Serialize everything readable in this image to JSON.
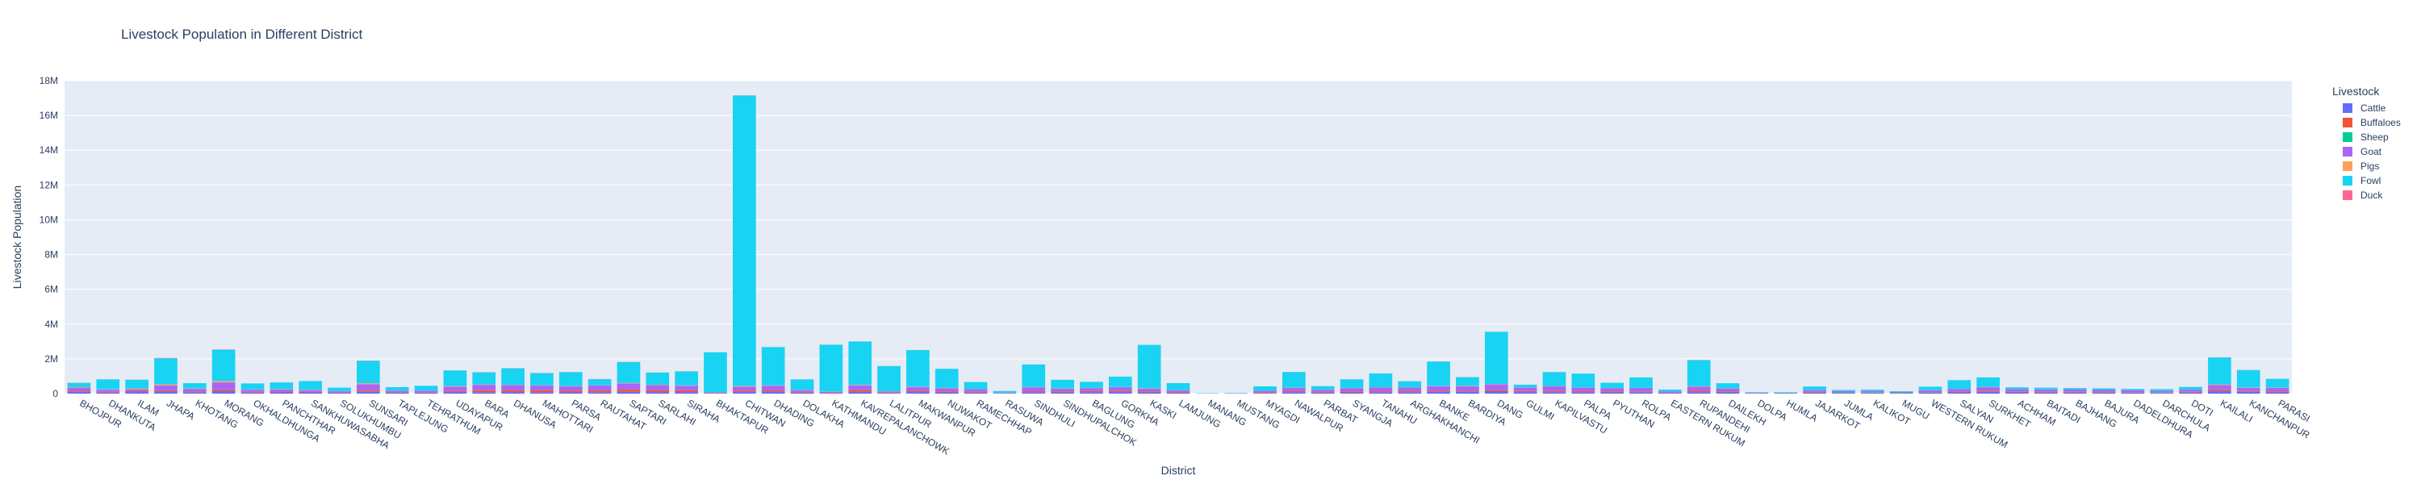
{
  "chart_data": {
    "type": "bar",
    "stacked": true,
    "title": "Livestock Population in Different District",
    "xlabel": "District",
    "ylabel": "Livestock Population",
    "ylim": [
      0,
      18000000
    ],
    "yticks": [
      "0",
      "2M",
      "4M",
      "6M",
      "8M",
      "10M",
      "12M",
      "14M",
      "16M",
      "18M"
    ],
    "ytick_values": [
      0,
      2000000,
      4000000,
      6000000,
      8000000,
      10000000,
      12000000,
      14000000,
      16000000,
      18000000
    ],
    "grid": true,
    "legend_title": "Livestock",
    "legend_position": "right",
    "categories": [
      "BHOJPUR",
      "DHANKUTA",
      "ILAM",
      "JHAPA",
      "KHOTANG",
      "MORANG",
      "OKHALDHUNGA",
      "PANCHTHAR",
      "SANKHUWASABHA",
      "SOLUKHUMBU",
      "SUNSARI",
      "TAPLEJUNG",
      "TEHRATHUM",
      "UDAYAPUR",
      "BARA",
      "DHANUSA",
      "MAHOTTARI",
      "PARSA",
      "RAUTAHAT",
      "SAPTARI",
      "SARLAHI",
      "SIRAHA",
      "BHAKTAPUR",
      "CHITWAN",
      "DHADING",
      "DOLAKHA",
      "KATHMANDU",
      "KAVREPALANCHOWK",
      "LALITPUR",
      "MAKWANPUR",
      "NUWAKOT",
      "RAMECHHAP",
      "RASUWA",
      "SINDHULI",
      "SINDHUPALCHOK",
      "BAGLUNG",
      "GORKHA",
      "KASKI",
      "LAMJUNG",
      "MANANG",
      "MUSTANG",
      "MYAGDI",
      "NAWALPUR",
      "PARBAT",
      "SYANGJA",
      "TANAHU",
      "ARGHAKHANCHI",
      "BANKE",
      "BARDIYA",
      "DANG",
      "GULMI",
      "KAPILVASTU",
      "PALPA",
      "PYUTHAN",
      "ROLPA",
      "EASTERN RUKUM",
      "RUPANDEHI",
      "DAILEKH",
      "DOLPA",
      "HUMLA",
      "JAJARKOT",
      "JUMLA",
      "KALIKOT",
      "MUGU",
      "WESTERN RUKUM",
      "SALYAN",
      "SURKHET",
      "ACHHAM",
      "BAITADI",
      "BAJHANG",
      "BAJURA",
      "DADELDHURA",
      "DARCHULA",
      "DOTI",
      "KAILALI",
      "KANCHANPUR",
      "PARASI"
    ],
    "series": [
      {
        "name": "Cattle",
        "color": "#636efa",
        "values": [
          100000,
          60000,
          90000,
          130000,
          80000,
          140000,
          60000,
          70000,
          70000,
          50000,
          100000,
          60000,
          50000,
          90000,
          80000,
          90000,
          80000,
          70000,
          80000,
          100000,
          90000,
          90000,
          20000,
          90000,
          110000,
          60000,
          30000,
          110000,
          30000,
          90000,
          70000,
          60000,
          15000,
          80000,
          70000,
          80000,
          90000,
          70000,
          50000,
          2000,
          3000,
          40000,
          80000,
          60000,
          70000,
          80000,
          80000,
          100000,
          110000,
          140000,
          90000,
          80000,
          80000,
          70000,
          80000,
          40000,
          80000,
          70000,
          20000,
          20000,
          50000,
          40000,
          40000,
          30000,
          50000,
          70000,
          100000,
          70000,
          60000,
          60000,
          60000,
          50000,
          40000,
          60000,
          150000,
          100000,
          70000
        ]
      },
      {
        "name": "Buffaloes",
        "color": "#ef553b",
        "values": [
          60000,
          40000,
          50000,
          60000,
          40000,
          100000,
          40000,
          40000,
          30000,
          20000,
          80000,
          30000,
          30000,
          60000,
          120000,
          110000,
          120000,
          90000,
          100000,
          130000,
          110000,
          100000,
          20000,
          80000,
          90000,
          40000,
          20000,
          110000,
          30000,
          70000,
          60000,
          50000,
          10000,
          60000,
          60000,
          70000,
          70000,
          60000,
          40000,
          1000,
          1000,
          40000,
          60000,
          50000,
          60000,
          60000,
          70000,
          60000,
          50000,
          80000,
          60000,
          70000,
          60000,
          60000,
          50000,
          20000,
          80000,
          50000,
          2000,
          1000,
          40000,
          20000,
          20000,
          10000,
          30000,
          40000,
          60000,
          40000,
          40000,
          40000,
          30000,
          30000,
          20000,
          40000,
          80000,
          50000,
          60000
        ]
      },
      {
        "name": "Sheep",
        "color": "#00cc96",
        "values": [
          2000,
          2000,
          2000,
          3000,
          2000,
          5000,
          2000,
          3000,
          4000,
          5000,
          3000,
          5000,
          2000,
          3000,
          5000,
          6000,
          6000,
          5000,
          5000,
          6000,
          5000,
          5000,
          500,
          5000,
          6000,
          5000,
          1000,
          5000,
          1000,
          4000,
          3000,
          6000,
          4000,
          3000,
          6000,
          8000,
          10000,
          5000,
          6000,
          3000,
          6000,
          5000,
          4000,
          4000,
          4000,
          4000,
          4000,
          6000,
          8000,
          10000,
          6000,
          8000,
          5000,
          8000,
          15000,
          10000,
          6000,
          10000,
          15000,
          20000,
          15000,
          30000,
          20000,
          30000,
          15000,
          8000,
          8000,
          10000,
          10000,
          20000,
          20000,
          8000,
          15000,
          10000,
          10000,
          8000,
          5000
        ]
      },
      {
        "name": "Goat",
        "color": "#ab63fa",
        "values": [
          180000,
          120000,
          110000,
          280000,
          150000,
          400000,
          120000,
          130000,
          100000,
          60000,
          350000,
          70000,
          80000,
          250000,
          300000,
          280000,
          260000,
          250000,
          280000,
          350000,
          280000,
          260000,
          30000,
          230000,
          250000,
          100000,
          50000,
          250000,
          60000,
          220000,
          180000,
          140000,
          20000,
          220000,
          150000,
          160000,
          200000,
          150000,
          100000,
          5000,
          10000,
          80000,
          180000,
          110000,
          180000,
          210000,
          200000,
          260000,
          250000,
          300000,
          200000,
          260000,
          200000,
          180000,
          180000,
          60000,
          230000,
          160000,
          30000,
          20000,
          100000,
          60000,
          70000,
          40000,
          100000,
          150000,
          200000,
          140000,
          130000,
          130000,
          120000,
          100000,
          80000,
          120000,
          250000,
          180000,
          200000
        ]
      },
      {
        "name": "Pigs",
        "color": "#ffa15a",
        "values": [
          30000,
          20000,
          40000,
          60000,
          20000,
          80000,
          15000,
          20000,
          20000,
          10000,
          60000,
          10000,
          10000,
          30000,
          20000,
          20000,
          15000,
          20000,
          15000,
          30000,
          25000,
          20000,
          10000,
          40000,
          20000,
          15000,
          15000,
          25000,
          15000,
          20000,
          15000,
          10000,
          2000,
          15000,
          10000,
          10000,
          10000,
          20000,
          10000,
          500,
          500,
          5000,
          20000,
          5000,
          10000,
          10000,
          10000,
          20000,
          30000,
          25000,
          10000,
          20000,
          10000,
          8000,
          8000,
          3000,
          30000,
          8000,
          500,
          500,
          5000,
          2000,
          2000,
          1000,
          5000,
          8000,
          15000,
          5000,
          5000,
          3000,
          2000,
          3000,
          2000,
          5000,
          40000,
          20000,
          15000
        ]
      },
      {
        "name": "Fowl",
        "color": "#19d3f3",
        "values": [
          250000,
          580000,
          510000,
          1500000,
          310000,
          1800000,
          350000,
          380000,
          500000,
          200000,
          1300000,
          200000,
          280000,
          900000,
          700000,
          950000,
          700000,
          800000,
          350000,
          1200000,
          700000,
          800000,
          2300000,
          16700000,
          2200000,
          600000,
          2700000,
          2500000,
          1450000,
          2100000,
          1100000,
          400000,
          100000,
          1300000,
          500000,
          350000,
          600000,
          2500000,
          400000,
          20000,
          20000,
          250000,
          900000,
          200000,
          500000,
          800000,
          350000,
          1400000,
          500000,
          3000000,
          150000,
          800000,
          800000,
          300000,
          600000,
          100000,
          1500000,
          300000,
          10000,
          20000,
          200000,
          60000,
          80000,
          30000,
          200000,
          500000,
          550000,
          100000,
          100000,
          70000,
          70000,
          80000,
          100000,
          150000,
          1550000,
          1000000,
          500000
        ]
      },
      {
        "name": "Duck",
        "color": "#ff6692",
        "values": [
          2000,
          2000,
          3000,
          15000,
          2000,
          15000,
          1000,
          2000,
          1000,
          500,
          10000,
          500,
          1000,
          5000,
          8000,
          10000,
          8000,
          6000,
          8000,
          12000,
          8000,
          10000,
          1000,
          8000,
          2000,
          1000,
          2000,
          3000,
          2000,
          3000,
          2000,
          1000,
          200,
          3000,
          1000,
          1000,
          1000,
          3000,
          1000,
          100,
          100,
          500,
          3000,
          500,
          1000,
          2000,
          1000,
          5000,
          5000,
          5000,
          1000,
          5000,
          2000,
          1000,
          1000,
          200,
          8000,
          1000,
          100,
          100,
          500,
          200,
          200,
          100,
          500,
          1000,
          2000,
          500,
          500,
          300,
          300,
          300,
          300,
          500,
          8000,
          5000,
          3000
        ]
      }
    ]
  }
}
